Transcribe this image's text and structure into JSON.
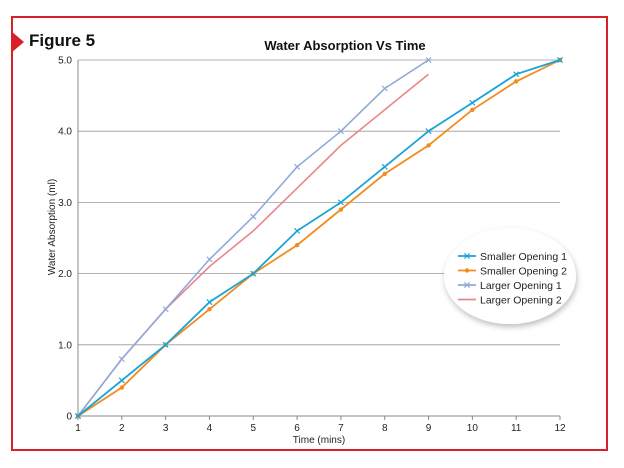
{
  "figure_label": "Figure 5",
  "chart_data": {
    "type": "line",
    "title": "Water Absorption Vs Time",
    "xlabel": "Time (mins)",
    "ylabel": "Water Absorption (ml)",
    "xlim": [
      1,
      12
    ],
    "ylim": [
      0,
      5
    ],
    "x_ticks": [
      "1",
      "2",
      "3",
      "4",
      "5",
      "6",
      "7",
      "8",
      "9",
      "10",
      "11",
      "12"
    ],
    "y_ticks": [
      "0",
      "1.0",
      "2.0",
      "3.0",
      "4.0",
      "5.0"
    ],
    "grid": true,
    "legend_position": "right",
    "series": [
      {
        "name": "Smaller Opening 1",
        "color": "#1aa3d6",
        "marker": "x",
        "x": [
          1,
          2,
          3,
          4,
          5,
          6,
          7,
          8,
          9,
          10,
          11,
          12
        ],
        "values": [
          0,
          0.5,
          1.0,
          1.6,
          2.0,
          2.6,
          3.0,
          3.5,
          4.0,
          4.4,
          4.8,
          5.0
        ]
      },
      {
        "name": "Smaller Opening 2",
        "color": "#f28c1e",
        "marker": "dot",
        "x": [
          1,
          2,
          3,
          4,
          5,
          6,
          7,
          8,
          9,
          10,
          11,
          12
        ],
        "values": [
          0,
          0.4,
          1.0,
          1.5,
          2.0,
          2.4,
          2.9,
          3.4,
          3.8,
          4.3,
          4.7,
          5.0
        ]
      },
      {
        "name": "Larger Opening 1",
        "color": "#8fa9db",
        "marker": "cross",
        "x": [
          1,
          2,
          3,
          4,
          5,
          6,
          7,
          8,
          9
        ],
        "values": [
          0,
          0.8,
          1.5,
          2.2,
          2.8,
          3.5,
          4.0,
          4.6,
          5.0
        ]
      },
      {
        "name": "Larger Opening 2",
        "color": "#e8878a",
        "marker": "none",
        "x": [
          1,
          2,
          3,
          4,
          5,
          6,
          7,
          8,
          9
        ],
        "values": [
          0,
          0.8,
          1.5,
          2.1,
          2.6,
          3.2,
          3.8,
          4.3,
          4.8
        ]
      }
    ]
  }
}
